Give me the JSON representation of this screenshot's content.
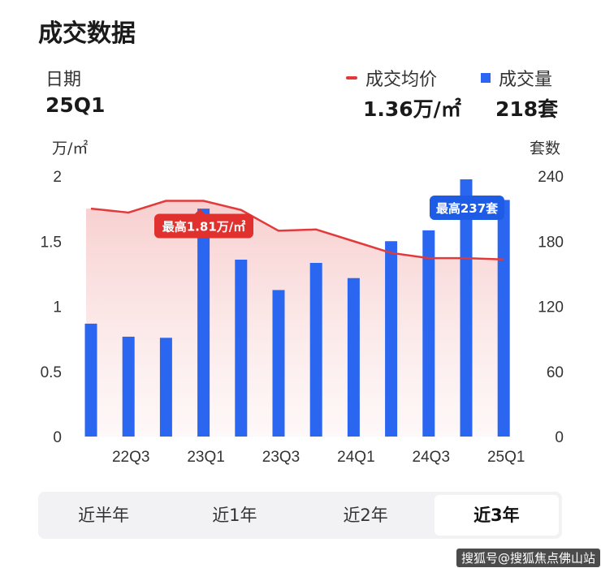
{
  "header": {
    "title": "成交数据"
  },
  "summary": {
    "date_label": "日期",
    "date_value": "25Q1",
    "price_legend": "成交均价",
    "volume_legend": "成交量",
    "price_value": "1.36万/㎡",
    "volume_value": "218套"
  },
  "colors": {
    "price_line": "#e23a3a",
    "volume_bar": "#2a66f0",
    "active_tab_bg": "#ffffff"
  },
  "chart_data": {
    "type": "bar",
    "left_unit": "万/㎡",
    "right_unit": "套数",
    "y_left": {
      "min": 0,
      "max": 2,
      "ticks": [
        "2",
        "1.5",
        "1",
        "0.5",
        "0"
      ]
    },
    "y_right": {
      "min": 0,
      "max": 240,
      "ticks": [
        "240",
        "180",
        "120",
        "60",
        "0"
      ]
    },
    "x_tick_labels": [
      "22Q3",
      "23Q1",
      "23Q3",
      "24Q1",
      "24Q3",
      "25Q1"
    ],
    "series": [
      {
        "name": "成交量",
        "axis": "right",
        "type": "bar",
        "values": [
          104,
          92,
          91,
          210,
          163,
          135,
          160,
          146,
          180,
          190,
          237,
          218
        ]
      },
      {
        "name": "成交均价",
        "axis": "left",
        "type": "area-line",
        "values": [
          1.75,
          1.72,
          1.81,
          1.81,
          1.74,
          1.58,
          1.59,
          1.5,
          1.41,
          1.37,
          1.37,
          1.36
        ]
      }
    ],
    "annotations": {
      "max_price": "最高1.81万/㎡",
      "max_volume": "最高237套"
    }
  },
  "tabs": [
    "近半年",
    "近1年",
    "近2年",
    "近3年"
  ],
  "active_tab_index": 3,
  "watermark": "搜狐号@搜狐焦点佛山站"
}
